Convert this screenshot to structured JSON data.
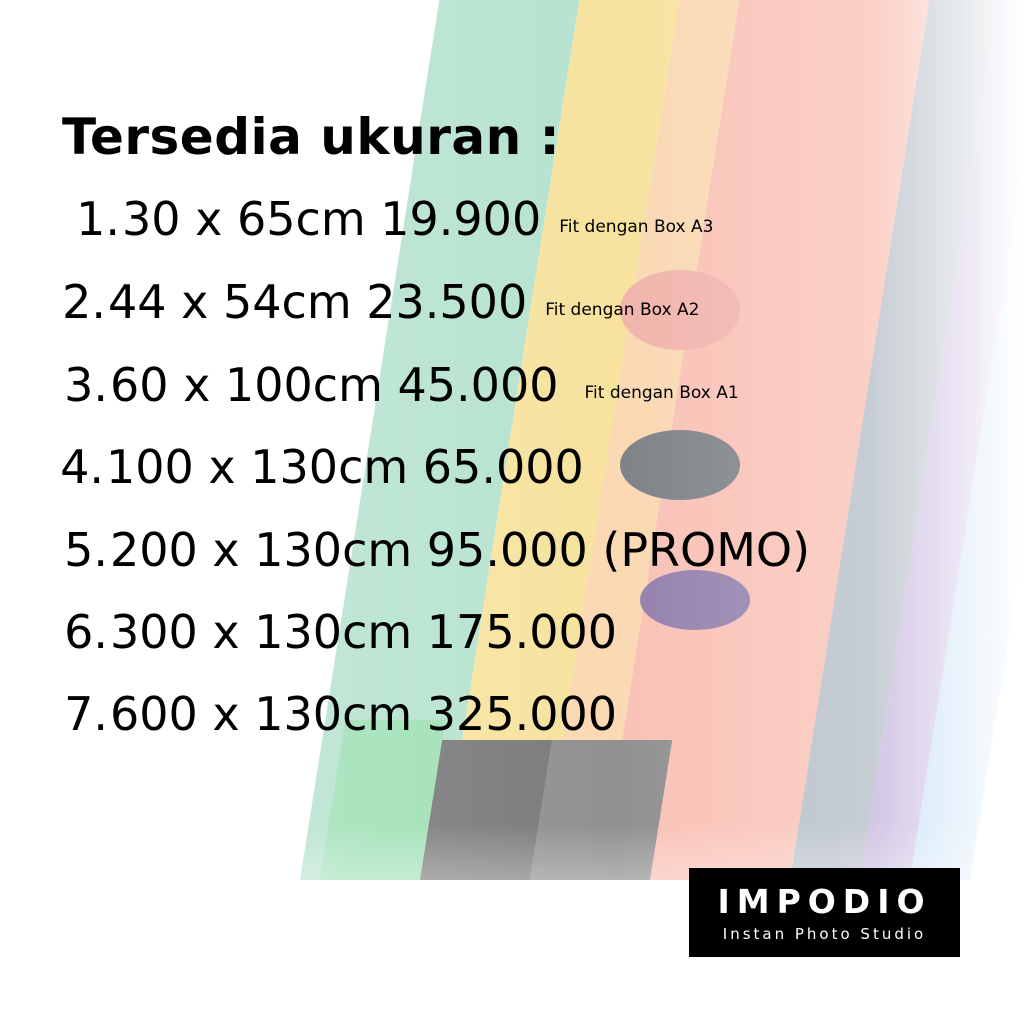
{
  "title": "Tersedia ukuran :",
  "items": [
    {
      "num": "1.",
      "text": "30 x 65cm 19.900",
      "note": "Fit dengan Box A3"
    },
    {
      "num": "2.",
      "text": "44 x 54cm 23.500",
      "note": "Fit dengan Box A2"
    },
    {
      "num": "3.",
      "text": "60 x 100cm 45.000",
      "note": "Fit dengan Box A1"
    },
    {
      "num": "4.",
      "text": "100 x 130cm 65.000",
      "note": ""
    },
    {
      "num": "5.",
      "text": "200 x 130cm 95.000 (PROMO)",
      "note": ""
    },
    {
      "num": "6.",
      "text": "300 x 130cm 175.000",
      "note": ""
    },
    {
      "num": "7.",
      "text": "600 x 130cm 325.000",
      "note": ""
    }
  ],
  "logo": {
    "name": "IMPODIO",
    "tagline": "Instan Photo Studio"
  },
  "colors": {
    "green": "#8fd3b5",
    "yellow": "#f3d36a",
    "salmon": "#f6a08e",
    "slate": "#8d9aa8",
    "purple": "#a58ccc",
    "blue": "#9ccaf0",
    "black": "#333333"
  }
}
